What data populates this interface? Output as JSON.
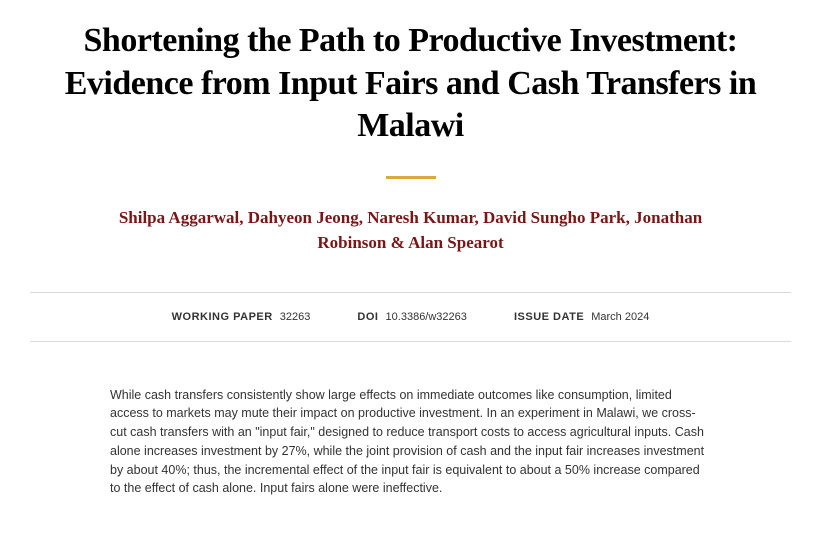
{
  "title": "Shortening the Path to Productive Investment: Evidence from Input Fairs and Cash Transfers in Malawi",
  "accent_color": "#d9a93c",
  "author_color": "#7a1616",
  "authors": [
    "Shilpa Aggarwal",
    "Dahyeon Jeong",
    "Naresh Kumar",
    "David Sungho Park",
    "Jonathan Robinson",
    "Alan Spearot"
  ],
  "meta": {
    "working_paper_label": "WORKING PAPER",
    "working_paper_value": "32263",
    "doi_label": "DOI",
    "doi_value": "10.3386/w32263",
    "issue_date_label": "ISSUE DATE",
    "issue_date_value": "March 2024"
  },
  "abstract": "While cash transfers consistently show large effects on immediate outcomes like consumption, limited access to markets may mute their impact on productive investment. In an experiment in Malawi, we cross-cut cash transfers with an \"input fair,\" designed to reduce transport costs to access agricultural inputs. Cash alone increases investment by 27%, while the joint provision of cash and the input fair increases investment by about 40%; thus, the incremental effect of the input fair is equivalent to about a 50% increase compared to the effect of cash alone. Input fairs alone were ineffective.",
  "layout": {
    "title_fontsize": 34,
    "author_fontsize": 17,
    "meta_fontsize": 11,
    "abstract_fontsize": 12.5,
    "background_color": "#ffffff",
    "border_color": "#d9d9d9",
    "body_text_color": "#333333"
  }
}
